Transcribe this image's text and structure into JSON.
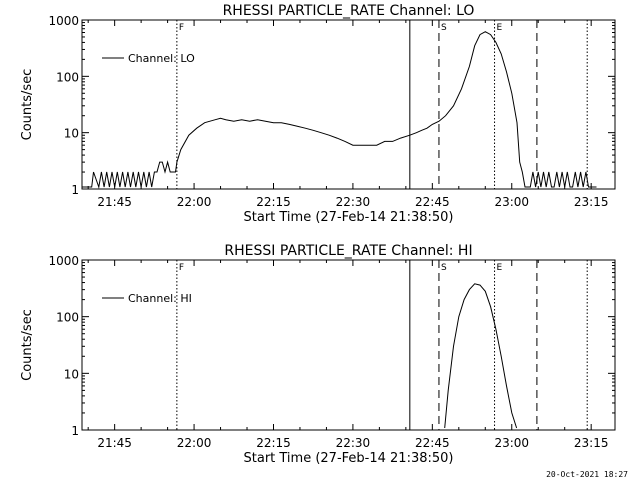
{
  "footer": "20-Oct-2021 18:27",
  "chart_data": [
    {
      "type": "line",
      "title": "RHESSI PARTICLE_RATE Channel: LO",
      "xlabel": "Start Time (27-Feb-14 21:38:50)",
      "ylabel": "Counts/sec",
      "yscale": "log",
      "xlim": [
        "21:38:50",
        "23:19:30"
      ],
      "ylim": [
        1,
        1000
      ],
      "xticks": [
        "21:45",
        "22:00",
        "22:15",
        "22:30",
        "22:45",
        "23:00",
        "23:15"
      ],
      "yticks": [
        "1",
        "10",
        "100",
        "1000"
      ],
      "legend": {
        "label": "Channel: LO",
        "position": "top-left"
      },
      "markers": [
        {
          "time": "21:56:45",
          "label": "F",
          "style": "dotted"
        },
        {
          "time": "22:40:45",
          "label": "",
          "style": "solid"
        },
        {
          "time": "22:46:15",
          "label": "S",
          "style": "dashed"
        },
        {
          "time": "22:56:45",
          "label": "E",
          "style": "dotted"
        },
        {
          "time": "23:04:45",
          "label": "",
          "style": "dashed"
        },
        {
          "time": "23:14:15",
          "label": "",
          "style": "dotted"
        }
      ],
      "series": [
        {
          "name": "Channel: LO",
          "x": [
            "21:38:50",
            "21:40:00",
            "21:40:40",
            "21:41:00",
            "21:42:00",
            "21:42:30",
            "21:43:00",
            "21:43:30",
            "21:44:00",
            "21:44:30",
            "21:45:00",
            "21:45:30",
            "21:46:00",
            "21:46:30",
            "21:47:00",
            "21:47:30",
            "21:48:00",
            "21:48:30",
            "21:49:00",
            "21:49:30",
            "21:50:00",
            "21:50:30",
            "21:51:00",
            "21:51:30",
            "21:52:00",
            "21:52:30",
            "21:53:00",
            "21:53:30",
            "21:54:00",
            "21:54:30",
            "21:55:00",
            "21:55:30",
            "21:56:00",
            "21:56:30",
            "21:56:45",
            "21:57:30",
            "21:59:00",
            "22:00:30",
            "22:02:00",
            "22:03:00",
            "22:04:00",
            "22:05:00",
            "22:06:00",
            "22:07:30",
            "22:09:00",
            "22:10:30",
            "22:12:00",
            "22:13:30",
            "22:15:00",
            "22:16:30",
            "22:18:00",
            "22:19:30",
            "22:21:00",
            "22:22:30",
            "22:24:00",
            "22:25:30",
            "22:27:00",
            "22:28:30",
            "22:30:00",
            "22:31:30",
            "22:33:00",
            "22:34:30",
            "22:36:00",
            "22:37:30",
            "22:39:00",
            "22:40:45",
            "22:42:00",
            "22:43:00",
            "22:44:00",
            "22:45:00",
            "22:46:15",
            "22:47:30",
            "22:49:00",
            "22:50:30",
            "22:52:00",
            "22:53:00",
            "22:54:00",
            "22:55:00",
            "22:56:00",
            "22:57:00",
            "22:58:00",
            "22:59:00",
            "23:00:00",
            "23:01:00",
            "23:01:30",
            "23:02:00",
            "23:02:30",
            "23:03:00",
            "23:03:30",
            "23:04:00",
            "23:04:30",
            "23:05:00",
            "23:05:30",
            "23:06:00",
            "23:06:30",
            "23:07:00",
            "23:07:30",
            "23:08:00",
            "23:08:30",
            "23:09:00",
            "23:09:30",
            "23:10:00",
            "23:10:30",
            "23:11:00",
            "23:11:30",
            "23:12:00",
            "23:12:30",
            "23:13:00",
            "23:13:30",
            "23:14:00",
            "23:14:30",
            "23:15:00",
            "23:15:30",
            "23:16:00"
          ],
          "y": [
            1,
            1,
            1,
            2,
            1,
            2,
            1,
            2,
            1,
            2,
            1,
            2,
            1,
            2,
            1,
            2,
            1,
            2,
            1,
            2,
            1,
            2,
            1,
            2,
            1,
            2,
            2,
            3,
            3,
            2,
            3,
            2,
            2,
            2,
            3,
            5,
            9,
            12,
            15,
            16,
            17,
            18,
            17,
            16,
            17,
            16,
            17,
            16,
            15,
            15,
            14,
            13,
            12,
            11,
            10,
            9,
            8,
            7,
            6,
            6,
            6,
            6,
            7,
            7,
            8,
            9,
            10,
            11,
            12,
            14,
            16,
            20,
            30,
            60,
            150,
            350,
            550,
            620,
            550,
            400,
            250,
            120,
            50,
            15,
            3,
            2,
            1,
            1,
            1,
            2,
            1,
            2,
            1,
            2,
            1,
            2,
            1,
            1,
            2,
            1,
            2,
            1,
            2,
            1,
            1,
            2,
            1,
            2,
            1,
            2,
            1,
            1,
            1,
            1
          ]
        }
      ]
    },
    {
      "type": "line",
      "title": "RHESSI PARTICLE_RATE Channel: HI",
      "xlabel": "Start Time (27-Feb-14 21:38:50)",
      "ylabel": "Counts/sec",
      "yscale": "log",
      "xlim": [
        "21:38:50",
        "23:19:30"
      ],
      "ylim": [
        1,
        1000
      ],
      "xticks": [
        "21:45",
        "22:00",
        "22:15",
        "22:30",
        "22:45",
        "23:00",
        "23:15"
      ],
      "yticks": [
        "1",
        "10",
        "100",
        "1000"
      ],
      "legend": {
        "label": "Channel: HI",
        "position": "top-left"
      },
      "markers": [
        {
          "time": "21:56:45",
          "label": "F",
          "style": "dotted"
        },
        {
          "time": "22:40:45",
          "label": "",
          "style": "solid"
        },
        {
          "time": "22:46:15",
          "label": "S",
          "style": "dashed"
        },
        {
          "time": "22:56:45",
          "label": "E",
          "style": "dotted"
        },
        {
          "time": "23:04:45",
          "label": "",
          "style": "dashed"
        },
        {
          "time": "23:14:15",
          "label": "",
          "style": "dotted"
        }
      ],
      "series": [
        {
          "name": "Channel: HI",
          "x": [
            "22:47:20",
            "22:48:00",
            "22:49:00",
            "22:50:00",
            "22:51:00",
            "22:52:00",
            "22:53:00",
            "22:54:00",
            "22:55:00",
            "22:56:00",
            "22:57:00",
            "22:58:00",
            "22:59:00",
            "23:00:00",
            "23:00:55"
          ],
          "y": [
            1,
            5,
            30,
            100,
            200,
            300,
            380,
            360,
            280,
            150,
            60,
            20,
            6,
            2,
            1
          ]
        }
      ]
    }
  ]
}
